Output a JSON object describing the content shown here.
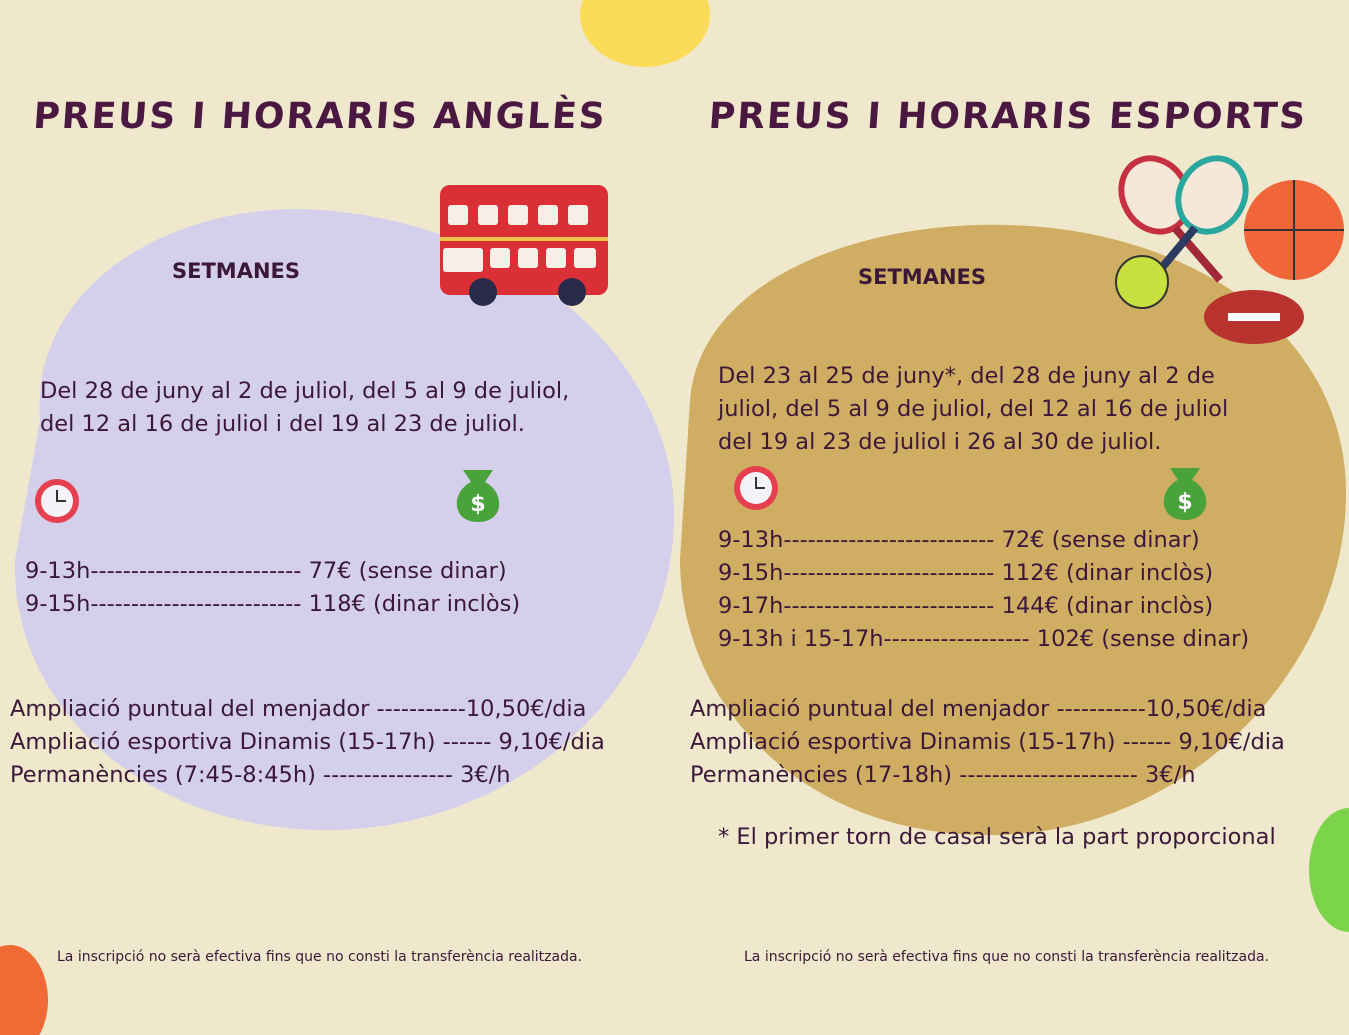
{
  "left": {
    "title": "PREUS I HORARIS ANGLÈS",
    "weeks_label": "SETMANES",
    "dates": [
      "Del 28 de juny al 2 de juliol, del 5 al 9 de juliol,",
      "del 12 al 16 de juliol i del 19 al 23 de juliol."
    ],
    "prices": [
      "9-13h-------------------------- 77€ (sense dinar)",
      "9-15h-------------------------- 118€ (dinar inclòs)"
    ],
    "extras": [
      "Ampliació puntual del menjador -----------10,50€/dia",
      "Ampliació esportiva Dinamis (15-17h) ------ 9,10€/dia",
      "Permanències (7:45-8:45h) ---------------- 3€/h"
    ],
    "footer": "La inscripció no serà efectiva fins que no consti la transferència realitzada."
  },
  "right": {
    "title": "PREUS I HORARIS ESPORTS",
    "weeks_label": "SETMANES",
    "dates": [
      "Del 23 al 25 de juny*, del 28 de juny al 2 de",
      "juliol, del 5 al 9 de juliol, del 12 al 16 de juliol",
      "del 19 al 23 de juliol i 26 al 30 de juliol."
    ],
    "prices": [
      "9-13h-------------------------- 72€ (sense dinar)",
      "9-15h-------------------------- 112€ (dinar inclòs)",
      "9-17h-------------------------- 144€ (dinar inclòs)",
      "9-13h i 15-17h------------------ 102€ (sense dinar)"
    ],
    "extras": [
      "Ampliació puntual del menjador -----------10,50€/dia",
      "Ampliació esportiva Dinamis (15-17h) ------ 9,10€/dia",
      "Permanències (17-18h) ---------------------- 3€/h"
    ],
    "note": "* El primer torn de casal serà la part proporcional",
    "footer": "La inscripció no serà efectiva fins que no consti la transferència realitzada."
  }
}
